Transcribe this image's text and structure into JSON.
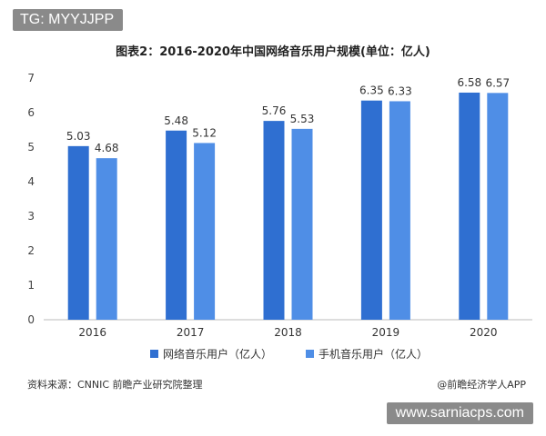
{
  "tag_label": "TG: MYYJJPP",
  "watermark_text": "www.sarniacps.com",
  "source_text": "资料来源：CNNIC 前瞻产业研究院整理",
  "credit_text": "@前瞻经济学人APP",
  "chart_data": {
    "type": "bar",
    "title": "图表2：2016-2020年中国网络音乐用户规模(单位：亿人)",
    "categories": [
      "2016",
      "2017",
      "2018",
      "2019",
      "2020"
    ],
    "series": [
      {
        "name": "网络音乐用户（亿人）",
        "values": [
          5.03,
          5.48,
          5.76,
          6.35,
          6.58
        ],
        "labels": [
          "5.03",
          "5.48",
          "5.76",
          "6.35",
          "6.58"
        ],
        "color": "#2f6fd1"
      },
      {
        "name": "手机音乐用户（亿人）",
        "values": [
          4.68,
          5.12,
          5.53,
          6.33,
          6.57
        ],
        "labels": [
          "4.68",
          "5.12",
          "5.53",
          "6.33",
          "6.57"
        ],
        "color": "#4f8ee6"
      }
    ],
    "ylim": [
      0,
      7
    ],
    "yticks": [
      0,
      1,
      2,
      3,
      4,
      5,
      6,
      7
    ],
    "legend": "bottom",
    "grid": false
  }
}
